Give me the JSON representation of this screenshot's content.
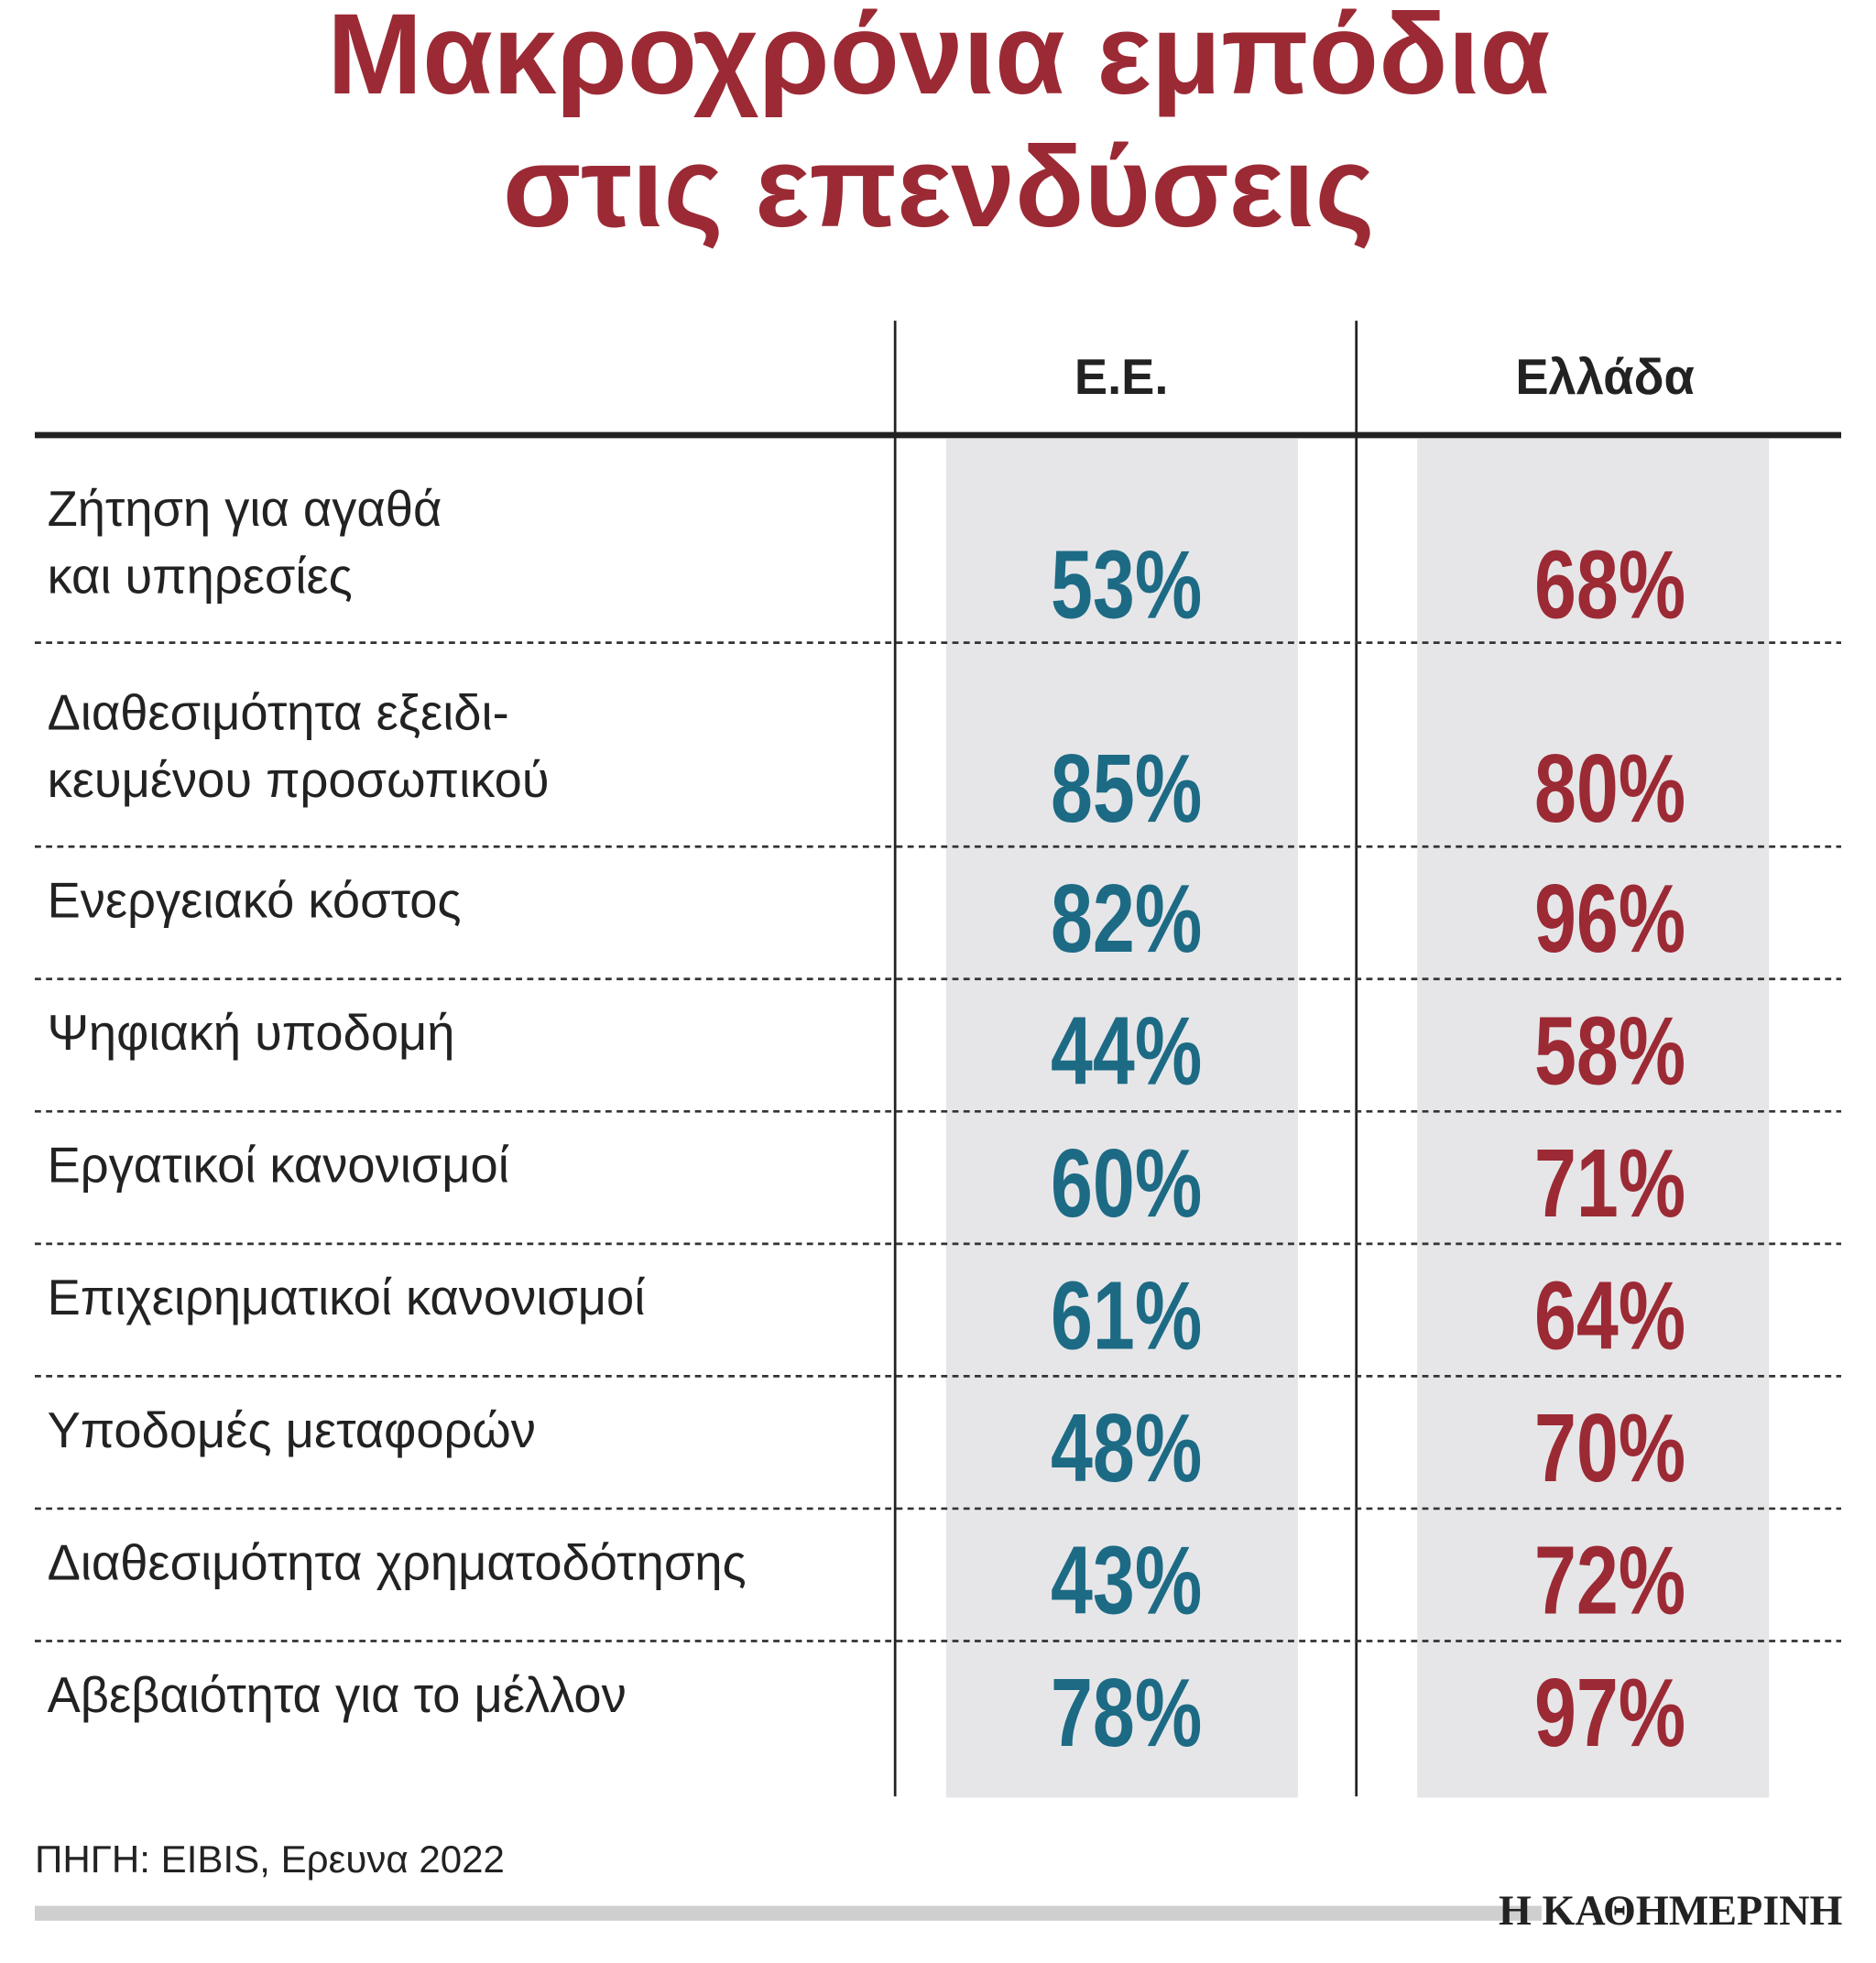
{
  "title": [
    "Μακροχρόνια εμπόδια",
    "στις επενδύσεις"
  ],
  "table": {
    "columns": [
      "Ε.Ε.",
      "Ελλάδα"
    ],
    "rows": [
      {
        "label": [
          "Ζήτηση για αγαθά",
          "και υπηρεσίες"
        ],
        "values": [
          "53%",
          "68%"
        ]
      },
      {
        "label": [
          "Διαθεσιμότητα εξειδι-",
          "κευμένου προσωπικού"
        ],
        "values": [
          "85%",
          "80%"
        ]
      },
      {
        "label": [
          "Ενεργειακό κόστος"
        ],
        "values": [
          "82%",
          "96%"
        ]
      },
      {
        "label": [
          "Ψηφιακή υποδομή"
        ],
        "values": [
          "44%",
          "58%"
        ]
      },
      {
        "label": [
          "Εργατικοί κανονισμοί"
        ],
        "values": [
          "60%",
          "71%"
        ]
      },
      {
        "label": [
          "Επιχειρηματικοί κανονισμοί"
        ],
        "values": [
          "61%",
          "64%"
        ]
      },
      {
        "label": [
          "Υποδομές μεταφορών"
        ],
        "values": [
          "48%",
          "70%"
        ]
      },
      {
        "label": [
          "Διαθεσιμότητα χρηματοδότησης"
        ],
        "values": [
          "43%",
          "72%"
        ]
      },
      {
        "label": [
          "Αβεβαιότητα για το μέλλον"
        ],
        "values": [
          "78%",
          "97%"
        ]
      }
    ]
  },
  "source": "ΠΗΓΗ: EIBIS, Ερευνα 2022",
  "brand": "Η ΚΑΘΗΜΕΡΙΝΗ"
}
